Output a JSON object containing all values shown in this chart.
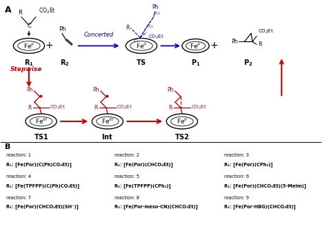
{
  "bg_color": "#ffffff",
  "black": "#000000",
  "blue": "#0000bb",
  "red": "#cc0000",
  "b_col1": [
    "reaction: 1",
    "R₁: [Fe(Por)(C(Ph)CO₂Et)]",
    "reaction: 4",
    "R₁: [Fe(TPFPP)(C(Ph)CO₂Et)]",
    "reaction: 7",
    "R₁: [Fe(Por)(CHCO₂Et)(SH⁻)]"
  ],
  "b_col2": [
    "reaction: 2",
    "R₁: [Fe(Por)(CHCO₂Et)]",
    "reaction: 5",
    "R₁: [Fe(TPFPP)(CPh₂)]",
    "reaction: 8",
    "R₁: [Fe(Por-meso-CN)(CHCO₂Et)]"
  ],
  "b_col3": [
    "reaction: 3",
    "R₁: [Fe(Por)(CPh₂)]",
    "reaction: 6",
    "R₁: [Fe(Por)(CHCO₂Et)(5-MeIm)]",
    "reaction: 9",
    "R₁: [Fe(Por-HBG)(CHCO₂Et)]"
  ]
}
